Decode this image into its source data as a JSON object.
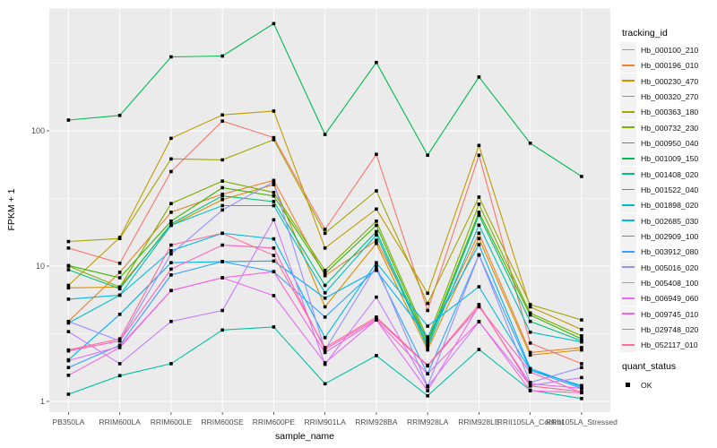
{
  "chart_data": {
    "type": "line",
    "title": "",
    "xlabel": "sample_name",
    "ylabel": "FPKM + 1",
    "yscale": "log10",
    "ylim": [
      1,
      800
    ],
    "y_ticks": [
      1,
      10,
      100
    ],
    "y_minor_ticks": [
      3.162,
      31.62,
      316.2
    ],
    "grid": "on",
    "panel_bg": "#EBEBEB",
    "grid_color": "#FFFFFF",
    "tick_color": "#333333",
    "tick_label_color": "#4D4D4D",
    "legend_key_bg": "#F2F2F2",
    "point_shape": "black-square",
    "point_color": "#000000",
    "categories": [
      "PB350LA",
      "RRIM600LA",
      "RRIM600LE",
      "RRIM600SE",
      "RRIM600PE",
      "RRIM901LA",
      "RRIM928BA",
      "RRIM928LA",
      "RRIM928LE",
      "RRII105LA_Control",
      "RRII105LA_Stressed"
    ],
    "series": [
      {
        "name": "Hb_000100_210",
        "color": "#F8766D",
        "values": [
          13.6,
          10.5,
          50,
          118,
          89,
          18.7,
          67,
          4.7,
          66,
          2.7,
          1.9
        ]
      },
      {
        "name": "Hb_000196_010",
        "color": "#EA8331",
        "values": [
          3.9,
          9.0,
          25,
          34,
          43,
          8.5,
          15.5,
          2.8,
          17.5,
          2.3,
          2.5
        ]
      },
      {
        "name": "Hb_000230_470",
        "color": "#D89000",
        "values": [
          6.9,
          7.0,
          20,
          31,
          40,
          5.0,
          14.7,
          2.4,
          16,
          2.2,
          2.4
        ]
      },
      {
        "name": "Hb_000320_270",
        "color": "#C09B00",
        "values": [
          7.2,
          16.3,
          88,
          131,
          140,
          13.6,
          26.4,
          6.3,
          78,
          5.0,
          3.4
        ]
      },
      {
        "name": "Hb_000363_180",
        "color": "#A3A500",
        "values": [
          15.2,
          16.0,
          62,
          61,
          86,
          17.5,
          36,
          5.3,
          32.4,
          5.2,
          4.0
        ]
      },
      {
        "name": "Hb_000732_230",
        "color": "#7CAE00",
        "values": [
          10.0,
          7.0,
          29,
          42.5,
          35,
          9.3,
          21.5,
          2.9,
          28.7,
          4.5,
          3.05
        ]
      },
      {
        "name": "Hb_000950_040",
        "color": "#39B600",
        "values": [
          10.1,
          8.2,
          21.5,
          38,
          33,
          8.8,
          20,
          2.75,
          25,
          4.35,
          2.9
        ]
      },
      {
        "name": "Hb_001009_150",
        "color": "#00BB4E",
        "values": [
          120,
          130,
          352,
          357,
          620,
          94,
          320,
          66,
          250,
          81,
          46
        ]
      },
      {
        "name": "Hb_001408_020",
        "color": "#00BF7D",
        "values": [
          9.4,
          6.8,
          20.5,
          33,
          30,
          7.2,
          18,
          2.6,
          23.8,
          3.9,
          2.8
        ]
      },
      {
        "name": "Hb_001522_040",
        "color": "#00C1A3",
        "values": [
          1.13,
          1.55,
          1.9,
          3.37,
          3.55,
          1.35,
          2.18,
          1.1,
          2.42,
          1.21,
          1.05
        ]
      },
      {
        "name": "Hb_001898_020",
        "color": "#00BFC4",
        "values": [
          3.8,
          6.1,
          20,
          28,
          28,
          6.35,
          17,
          2.5,
          20.1,
          3.25,
          2.75
        ]
      },
      {
        "name": "Hb_002685_030",
        "color": "#00BAE0",
        "values": [
          5.7,
          6.1,
          13,
          17.5,
          15.9,
          2.96,
          10.6,
          3.6,
          7.04,
          1.7,
          1.31
        ]
      },
      {
        "name": "Hb_002909_100",
        "color": "#00B0F6",
        "values": [
          2.03,
          4.4,
          10.6,
          10.8,
          10.9,
          5.8,
          9.3,
          3.0,
          14.4,
          1.75,
          1.28
        ]
      },
      {
        "name": "Hb_003912_080",
        "color": "#35A2FF",
        "values": [
          1.78,
          2.6,
          8.6,
          10.8,
          9.1,
          4.2,
          9.5,
          1.6,
          12.1,
          1.7,
          1.25
        ]
      },
      {
        "name": "Hb_005016_020",
        "color": "#9590FF",
        "values": [
          3.9,
          2.8,
          12.3,
          26,
          42,
          2.4,
          10,
          1.3,
          12.1,
          1.38,
          1.78
        ]
      },
      {
        "name": "Hb_005408_100",
        "color": "#C77CFF",
        "values": [
          3.28,
          1.9,
          3.9,
          4.7,
          22,
          1.88,
          5.9,
          1.28,
          3.88,
          1.31,
          1.5
        ]
      },
      {
        "name": "Hb_006949_060",
        "color": "#E76BF3",
        "values": [
          2.0,
          2.55,
          6.6,
          8.2,
          6.05,
          1.93,
          4.0,
          1.2,
          5.1,
          1.35,
          1.25
        ]
      },
      {
        "name": "Hb_009745_010",
        "color": "#FA62DB",
        "values": [
          1.56,
          2.5,
          6.6,
          8.2,
          9.1,
          2.3,
          4.0,
          1.6,
          3.9,
          1.2,
          1.16
        ]
      },
      {
        "name": "Hb_029748_020",
        "color": "#FF62BC",
        "values": [
          2.36,
          2.8,
          9.5,
          14.3,
          13.6,
          2.42,
          4.1,
          1.83,
          5.0,
          1.65,
          1.16
        ]
      },
      {
        "name": "Hb_052117_010",
        "color": "#FF6A98",
        "values": [
          2.4,
          2.9,
          14.3,
          17.5,
          12,
          2.5,
          4.2,
          1.85,
          5.2,
          1.3,
          1.18
        ]
      }
    ],
    "legend": {
      "tracking_title": "tracking_id",
      "status_title": "quant_status",
      "status_label": "OK"
    }
  }
}
